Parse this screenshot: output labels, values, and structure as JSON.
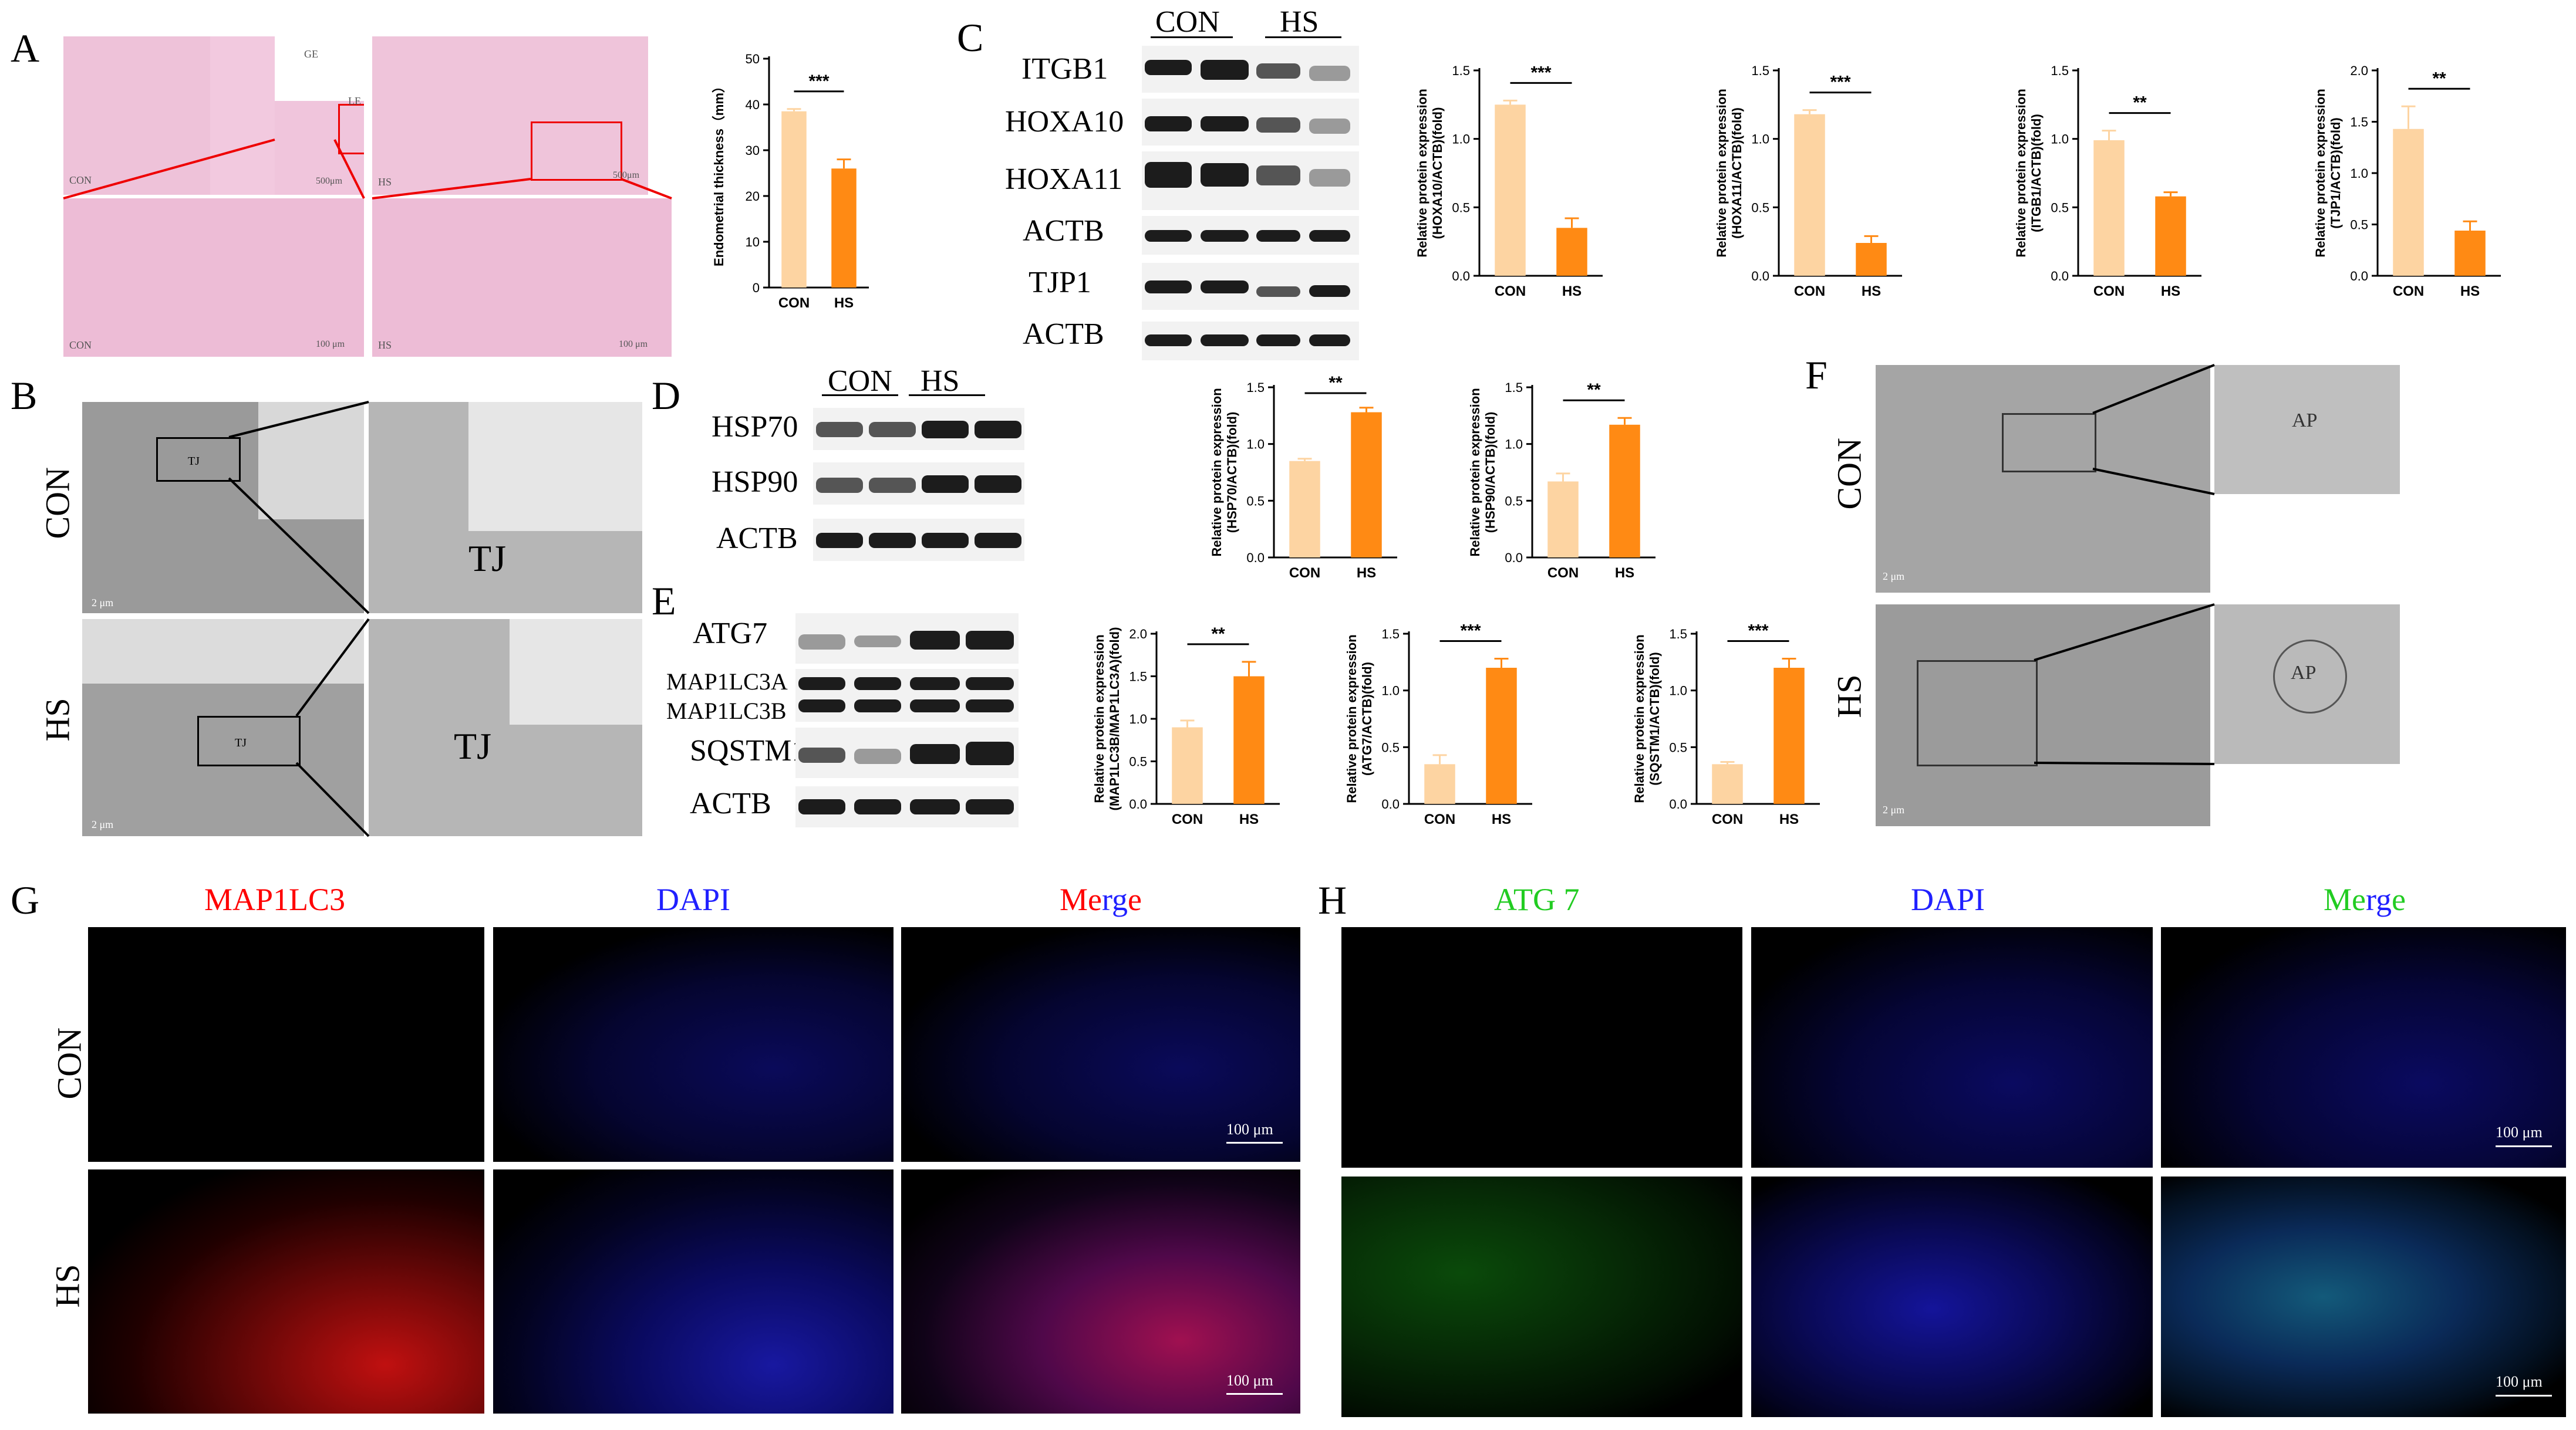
{
  "panels": {
    "A": "A",
    "B": "B",
    "C": "C",
    "D": "D",
    "E": "E",
    "F": "F",
    "G": "G",
    "H": "H"
  },
  "groups": {
    "con": "CON",
    "hs": "HS"
  },
  "panelA": {
    "labels": {
      "ge": "GE",
      "le": "LE",
      "con": "CON",
      "hs": "HS",
      "sb500": "500μm",
      "sb100": "100 μm"
    }
  },
  "panelB": {
    "tj": "TJ",
    "sb": "2 μm"
  },
  "panelC": {
    "proteins": [
      "ITGB1",
      "HOXA10",
      "HOXA11",
      "ACTB",
      "TJP1",
      "ACTB"
    ]
  },
  "panelD": {
    "proteins": [
      "HSP70",
      "HSP90",
      "ACTB"
    ]
  },
  "panelE": {
    "proteins": [
      "ATG7",
      "MAP1LC3A",
      "MAP1LC3B",
      "SQSTM1",
      "ACTB"
    ]
  },
  "panelF": {
    "ap": "AP",
    "sb": "2 μm"
  },
  "panelG": {
    "channels": [
      "MAP1LC3",
      "DAPI",
      "Merge"
    ],
    "scale": "100 μm"
  },
  "panelH": {
    "channels": [
      "ATG 7",
      "DAPI",
      "Merge"
    ],
    "scale": "100 μm"
  },
  "colors": {
    "con": "#fdd4a2",
    "hs": "#ff8a14",
    "red": "#ff0000",
    "blue": "#2020ff",
    "green": "#22cc22"
  },
  "chart_data": [
    {
      "id": "A-thickness",
      "type": "bar",
      "categories": [
        "CON",
        "HS"
      ],
      "values": [
        38.5,
        26
      ],
      "errors": [
        0.5,
        2
      ],
      "ylabel": "Endometrial thickness（mm）",
      "ylim": [
        0,
        50
      ],
      "yticks": [
        0,
        10,
        20,
        30,
        40,
        50
      ],
      "sig": "***"
    },
    {
      "id": "C-hoxa10",
      "type": "bar",
      "categories": [
        "CON",
        "HS"
      ],
      "values": [
        1.25,
        0.35
      ],
      "errors": [
        0.03,
        0.07
      ],
      "ylabel": "Relative protein expression (HOXA10/ACTB)(fold)",
      "ylim": [
        0,
        1.5
      ],
      "yticks": [
        0.0,
        0.5,
        1.0,
        1.5
      ],
      "sig": "***"
    },
    {
      "id": "C-hoxa11",
      "type": "bar",
      "categories": [
        "CON",
        "HS"
      ],
      "values": [
        1.18,
        0.24
      ],
      "errors": [
        0.03,
        0.05
      ],
      "ylabel": "Relative protein expression (HOXA11/ACTB)(fold)",
      "ylim": [
        0,
        1.5
      ],
      "yticks": [
        0.0,
        0.5,
        1.0,
        1.5
      ],
      "sig": "***"
    },
    {
      "id": "C-itgb1",
      "type": "bar",
      "categories": [
        "CON",
        "HS"
      ],
      "values": [
        0.99,
        0.58
      ],
      "errors": [
        0.07,
        0.03
      ],
      "ylabel": "Relative protein expression (ITGB1/ACTB)(fold)",
      "ylim": [
        0,
        1.5
      ],
      "yticks": [
        0.0,
        0.5,
        1.0,
        1.5
      ],
      "sig": "**"
    },
    {
      "id": "C-tjp1",
      "type": "bar",
      "categories": [
        "CON",
        "HS"
      ],
      "values": [
        1.43,
        0.44
      ],
      "errors": [
        0.22,
        0.09
      ],
      "ylabel": "Relative protein expression (TJP1/ACTB)(fold)",
      "ylim": [
        0,
        2.0
      ],
      "yticks": [
        0.0,
        0.5,
        1.0,
        1.5,
        2.0
      ],
      "sig": "**"
    },
    {
      "id": "D-hsp70",
      "type": "bar",
      "categories": [
        "CON",
        "HS"
      ],
      "values": [
        0.85,
        1.28
      ],
      "errors": [
        0.02,
        0.04
      ],
      "ylabel": "Relative protein expression (HSP70/ACTB)(fold)",
      "ylim": [
        0,
        1.5
      ],
      "yticks": [
        0.0,
        0.5,
        1.0,
        1.5
      ],
      "sig": "**"
    },
    {
      "id": "D-hsp90",
      "type": "bar",
      "categories": [
        "CON",
        "HS"
      ],
      "values": [
        0.67,
        1.17
      ],
      "errors": [
        0.07,
        0.06
      ],
      "ylabel": "Relative protein expression (HSP90/ACTB)(fold)",
      "ylim": [
        0,
        1.5
      ],
      "yticks": [
        0.0,
        0.5,
        1.0,
        1.5
      ],
      "sig": "**"
    },
    {
      "id": "E-lc3",
      "type": "bar",
      "categories": [
        "CON",
        "HS"
      ],
      "values": [
        0.9,
        1.5
      ],
      "errors": [
        0.08,
        0.17
      ],
      "ylabel": "Relative protein expression (MAP1LC3B/MAP1LC3A)(fold)",
      "ylim": [
        0,
        2.0
      ],
      "yticks": [
        0.0,
        0.5,
        1.0,
        1.5,
        2.0
      ],
      "sig": "**"
    },
    {
      "id": "E-atg7",
      "type": "bar",
      "categories": [
        "CON",
        "HS"
      ],
      "values": [
        0.35,
        1.2
      ],
      "errors": [
        0.08,
        0.08
      ],
      "ylabel": "Relative protein expression (ATG7/ACTB)(fold)",
      "ylim": [
        0,
        1.5
      ],
      "yticks": [
        0.0,
        0.5,
        1.0,
        1.5
      ],
      "sig": "***"
    },
    {
      "id": "E-sqstm1",
      "type": "bar",
      "categories": [
        "CON",
        "HS"
      ],
      "values": [
        0.35,
        1.2
      ],
      "errors": [
        0.02,
        0.08
      ],
      "ylabel": "Relative protein expression (SQSTM1/ACTB)(fold)",
      "ylim": [
        0,
        1.5
      ],
      "yticks": [
        0.0,
        0.5,
        1.0,
        1.5
      ],
      "sig": "***"
    }
  ]
}
